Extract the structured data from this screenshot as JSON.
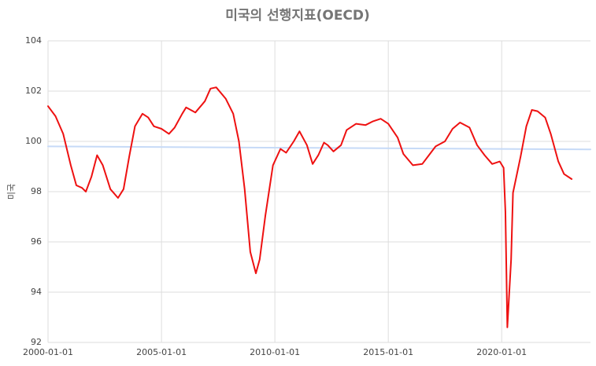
{
  "chart_data": {
    "type": "line",
    "title": "미국의 선행지표(OECD)",
    "ylabel": "미국",
    "xlim": [
      "2000-01-01",
      "2023-12-01"
    ],
    "xticks": [
      "2000-01-01",
      "2005-01-01",
      "2010-01-01",
      "2015-01-01",
      "2020-01-01"
    ],
    "ylim": [
      92,
      104
    ],
    "yticks": [
      92,
      94,
      96,
      98,
      100,
      102,
      104
    ],
    "grid": true,
    "series": [
      {
        "color": "#ee1111",
        "x": [
          "2000-01-01",
          "2000-05-01",
          "2000-09-01",
          "2001-01-01",
          "2001-04-01",
          "2001-07-01",
          "2001-09-01",
          "2001-12-01",
          "2002-03-01",
          "2002-06-01",
          "2002-10-01",
          "2003-02-01",
          "2003-05-01",
          "2003-08-01",
          "2003-11-01",
          "2004-03-01",
          "2004-06-01",
          "2004-09-01",
          "2005-01-01",
          "2005-05-01",
          "2005-08-01",
          "2005-12-01",
          "2006-02-01",
          "2006-07-01",
          "2006-12-01",
          "2007-03-01",
          "2007-06-01",
          "2007-11-01",
          "2008-03-01",
          "2008-06-01",
          "2008-09-01",
          "2008-12-01",
          "2009-03-01",
          "2009-05-01",
          "2009-08-01",
          "2009-12-01",
          "2010-04-01",
          "2010-07-01",
          "2010-11-01",
          "2011-02-01",
          "2011-06-01",
          "2011-09-01",
          "2011-12-01",
          "2012-03-01",
          "2012-05-01",
          "2012-08-01",
          "2012-12-01",
          "2013-03-01",
          "2013-08-01",
          "2014-01-01",
          "2014-05-01",
          "2014-09-01",
          "2015-01-01",
          "2015-06-01",
          "2015-09-01",
          "2016-02-01",
          "2016-07-01",
          "2016-11-01",
          "2017-02-01",
          "2017-07-01",
          "2017-11-01",
          "2018-03-01",
          "2018-08-01",
          "2018-12-01",
          "2019-04-01",
          "2019-08-01",
          "2019-12-01",
          "2020-02-01",
          "2020-03-01",
          "2020-04-01",
          "2020-06-01",
          "2020-07-01",
          "2020-11-01",
          "2021-02-01",
          "2021-05-01",
          "2021-08-01",
          "2021-12-01",
          "2022-03-01",
          "2022-07-01",
          "2022-10-01",
          "2023-02-01"
        ],
        "values": [
          101.4,
          101.0,
          100.3,
          99.05,
          98.25,
          98.15,
          98.0,
          98.6,
          99.45,
          99.05,
          98.1,
          97.75,
          98.1,
          99.4,
          100.6,
          101.1,
          100.95,
          100.6,
          100.5,
          100.3,
          100.55,
          101.1,
          101.35,
          101.15,
          101.6,
          102.1,
          102.15,
          101.7,
          101.1,
          100.0,
          98.1,
          95.6,
          94.75,
          95.3,
          97.05,
          99.05,
          99.7,
          99.55,
          100.0,
          100.4,
          99.85,
          99.1,
          99.45,
          99.95,
          99.85,
          99.6,
          99.85,
          100.45,
          100.7,
          100.65,
          100.8,
          100.9,
          100.7,
          100.15,
          99.5,
          99.05,
          99.1,
          99.5,
          99.8,
          100.0,
          100.5,
          100.75,
          100.55,
          99.85,
          99.45,
          99.1,
          99.2,
          98.95,
          97.2,
          92.6,
          95.3,
          97.95,
          99.4,
          100.6,
          101.25,
          101.2,
          100.95,
          100.3,
          99.2,
          98.7,
          98.5
        ]
      },
      {
        "color": "#c6daf7",
        "x": [
          "2000-01-01",
          "2023-12-01"
        ],
        "values": [
          99.8,
          99.68
        ]
      }
    ]
  }
}
